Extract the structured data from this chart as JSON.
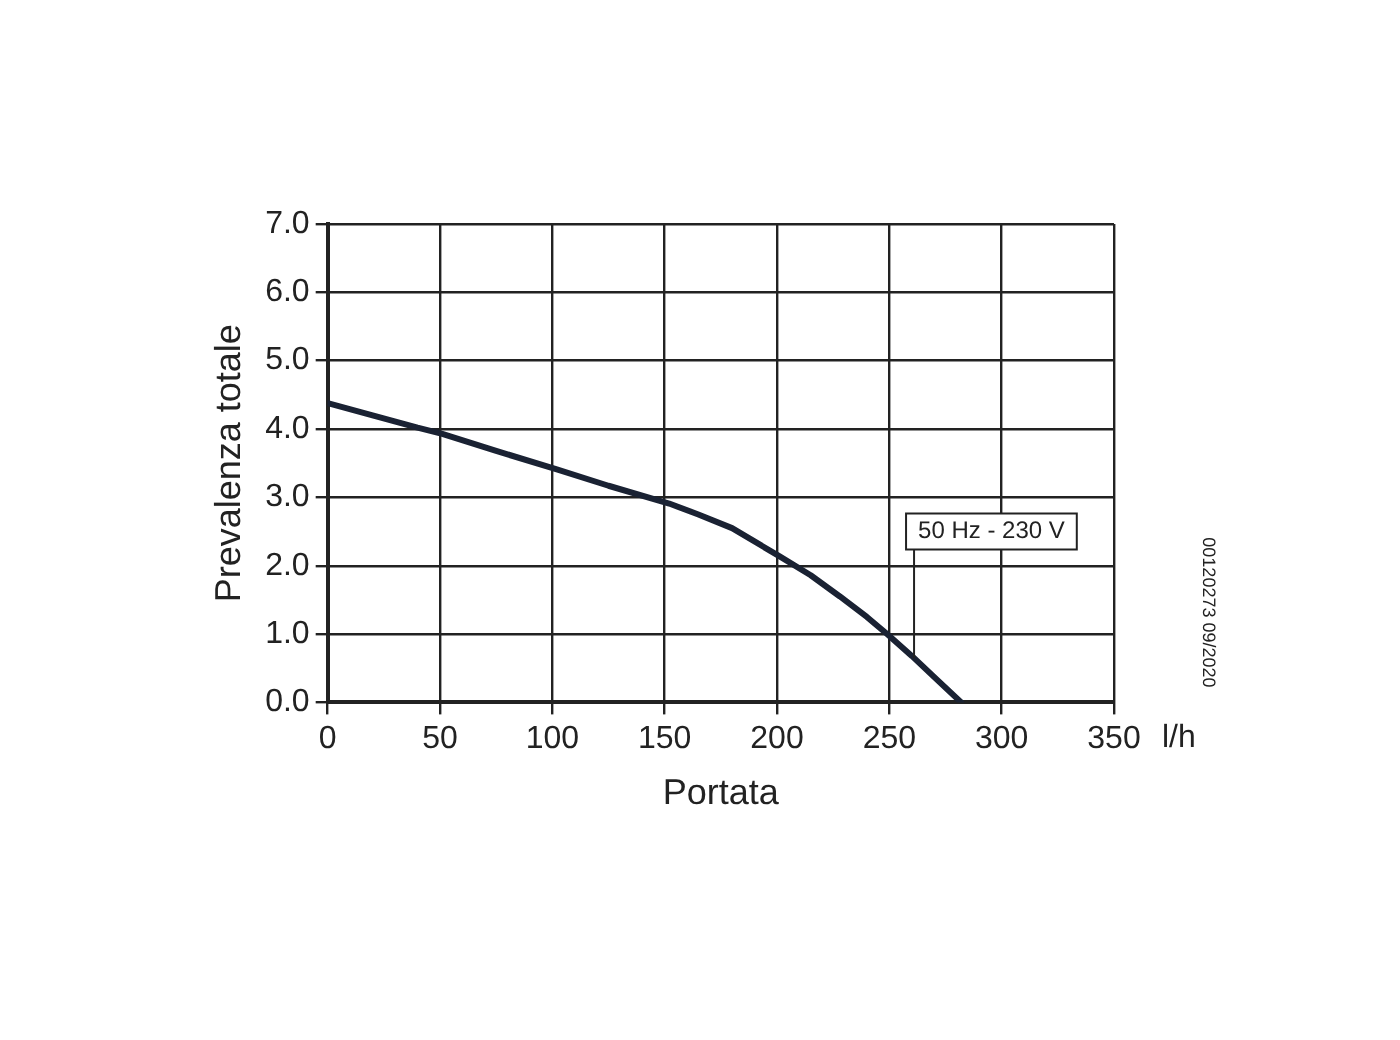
{
  "chart_data": {
    "type": "line",
    "xlabel": "Portata",
    "ylabel": "Prevalenza totale",
    "x": [
      0,
      20,
      40,
      51,
      75,
      102,
      125,
      152,
      165,
      180,
      201,
      215,
      228,
      240,
      249,
      260,
      270,
      282
    ],
    "series": [
      {
        "color": "#1a2233",
        "values": [
          4.38,
          4.2,
          4.02,
          3.93,
          3.68,
          3.41,
          3.17,
          2.91,
          2.75,
          2.55,
          2.14,
          1.86,
          1.55,
          1.25,
          1.0,
          0.68,
          0.37,
          0
        ]
      }
    ],
    "xlim": [
      0,
      350
    ],
    "xticks": [
      0,
      50,
      100,
      150,
      200,
      250,
      300,
      350
    ],
    "ylim": [
      0,
      7
    ],
    "yticks": [
      {
        "value": 0,
        "label": "0.0"
      },
      {
        "value": 1,
        "label": "1.0"
      },
      {
        "value": 2,
        "label": "2.0"
      },
      {
        "value": 3,
        "label": "3.0"
      },
      {
        "value": 4,
        "label": "4.0"
      },
      {
        "value": 5,
        "label": "5.0"
      },
      {
        "value": 6,
        "label": "6.0"
      },
      {
        "value": 7,
        "label": "7.0"
      }
    ],
    "grid": true,
    "legend": false,
    "marker": "none",
    "line_style": "solid",
    "annotations": [
      {
        "text": "50 Hz - 230 V",
        "x": 261,
        "y": 0.65
      },
      "l/h",
      "00120273 09/2020"
    ]
  }
}
